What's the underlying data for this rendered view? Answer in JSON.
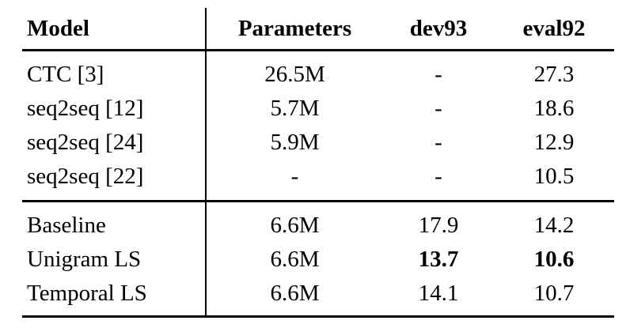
{
  "table": {
    "headers": [
      "Model",
      "Parameters",
      "dev93",
      "eval92"
    ],
    "rows": [
      {
        "model": "CTC [3]",
        "parameters": "26.5M",
        "dev93": "-",
        "eval92": "27.3"
      },
      {
        "model": "seq2seq [12]",
        "parameters": "5.7M",
        "dev93": "-",
        "eval92": "18.6"
      },
      {
        "model": "seq2seq [24]",
        "parameters": "5.9M",
        "dev93": "-",
        "eval92": "12.9"
      },
      {
        "model": "seq2seq [22]",
        "parameters": "-",
        "dev93": "-",
        "eval92": "10.5"
      },
      {
        "model": "Baseline",
        "parameters": "6.6M",
        "dev93": "17.9",
        "eval92": "14.2"
      },
      {
        "model": "Unigram LS",
        "parameters": "6.6M",
        "dev93": "13.7",
        "eval92": "10.6"
      },
      {
        "model": "Temporal LS",
        "parameters": "6.6M",
        "dev93": "14.1",
        "eval92": "10.7"
      }
    ],
    "bold_cells_note": "Unigram LS dev93 and eval92 values are bold (best results)"
  }
}
